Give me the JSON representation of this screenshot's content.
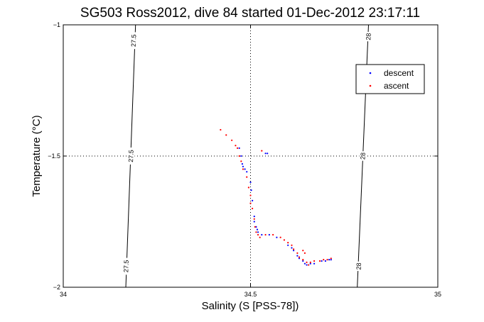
{
  "chart_data": {
    "type": "scatter",
    "title": "SG503 Ross2012, dive 84 started 01-Dec-2012 23:17:11",
    "xlabel": "Salinity (S [PSS-78])",
    "ylabel": "Temperature (°C)",
    "xlim": [
      34,
      35
    ],
    "ylim": [
      -2,
      -1
    ],
    "xticks": [
      "34",
      "34.5",
      "35"
    ],
    "yticks": [
      "-1",
      "-1.5",
      "-2"
    ],
    "grid": "dotted, at 34.5 and -1.5",
    "legend_position": "top-right",
    "colors": {
      "descent": "#0000ff",
      "ascent": "#ff0000",
      "isopycnal": "#000000"
    },
    "isopycnals": [
      {
        "label": "27.5",
        "points": [
          [
            34.193,
            -1.0
          ],
          [
            34.167,
            -2.0
          ]
        ],
        "label_positions": [
          [
            34.188,
            -1.06
          ],
          [
            34.181,
            -1.5
          ],
          [
            34.168,
            -1.92
          ]
        ]
      },
      {
        "label": "28",
        "points": [
          [
            34.815,
            -1.0
          ],
          [
            34.785,
            -2.0
          ]
        ],
        "label_positions": [
          [
            34.815,
            -1.045
          ],
          [
            34.8,
            -1.5
          ],
          [
            34.789,
            -1.92
          ]
        ]
      }
    ],
    "series": [
      {
        "name": "descent",
        "points": [
          [
            34.47,
            -1.47
          ],
          [
            34.475,
            -1.5
          ],
          [
            34.478,
            -1.53
          ],
          [
            34.48,
            -1.54
          ],
          [
            34.485,
            -1.55
          ],
          [
            34.49,
            -1.56
          ],
          [
            34.5,
            -1.6
          ],
          [
            34.502,
            -1.63
          ],
          [
            34.505,
            -1.67
          ],
          [
            34.51,
            -1.73
          ],
          [
            34.51,
            -1.75
          ],
          [
            34.515,
            -1.77
          ],
          [
            34.518,
            -1.78
          ],
          [
            34.52,
            -1.79
          ],
          [
            34.53,
            -1.8
          ],
          [
            34.55,
            -1.8
          ],
          [
            34.57,
            -1.81
          ],
          [
            34.6,
            -1.84
          ],
          [
            34.61,
            -1.85
          ],
          [
            34.615,
            -1.86
          ],
          [
            34.625,
            -1.88
          ],
          [
            34.63,
            -1.89
          ],
          [
            34.64,
            -1.9
          ],
          [
            34.645,
            -1.91
          ],
          [
            34.65,
            -1.915
          ],
          [
            34.66,
            -1.91
          ],
          [
            34.67,
            -1.91
          ],
          [
            34.69,
            -1.9
          ],
          [
            34.7,
            -1.9
          ],
          [
            34.71,
            -1.895
          ],
          [
            34.715,
            -1.895
          ],
          [
            34.54,
            -1.49
          ],
          [
            34.545,
            -1.49
          ]
        ]
      },
      {
        "name": "ascent",
        "points": [
          [
            34.42,
            -1.4
          ],
          [
            34.435,
            -1.42
          ],
          [
            34.45,
            -1.44
          ],
          [
            34.46,
            -1.46
          ],
          [
            34.465,
            -1.47
          ],
          [
            34.47,
            -1.5
          ],
          [
            34.475,
            -1.52
          ],
          [
            34.48,
            -1.55
          ],
          [
            34.49,
            -1.58
          ],
          [
            34.495,
            -1.62
          ],
          [
            34.5,
            -1.65
          ],
          [
            34.505,
            -1.7
          ],
          [
            34.51,
            -1.74
          ],
          [
            34.512,
            -1.77
          ],
          [
            34.515,
            -1.79
          ],
          [
            34.52,
            -1.8
          ],
          [
            34.525,
            -1.81
          ],
          [
            34.54,
            -1.8
          ],
          [
            34.56,
            -1.8
          ],
          [
            34.58,
            -1.81
          ],
          [
            34.59,
            -1.82
          ],
          [
            34.6,
            -1.83
          ],
          [
            34.61,
            -1.84
          ],
          [
            34.615,
            -1.855
          ],
          [
            34.625,
            -1.87
          ],
          [
            34.63,
            -1.885
          ],
          [
            34.64,
            -1.895
          ],
          [
            34.65,
            -1.905
          ],
          [
            34.655,
            -1.915
          ],
          [
            34.66,
            -1.905
          ],
          [
            34.67,
            -1.9
          ],
          [
            34.685,
            -1.9
          ],
          [
            34.695,
            -1.895
          ],
          [
            34.705,
            -1.895
          ],
          [
            34.715,
            -1.89
          ],
          [
            34.64,
            -1.86
          ],
          [
            34.645,
            -1.87
          ],
          [
            34.5,
            -1.68
          ],
          [
            34.53,
            -1.48
          ]
        ]
      }
    ]
  }
}
